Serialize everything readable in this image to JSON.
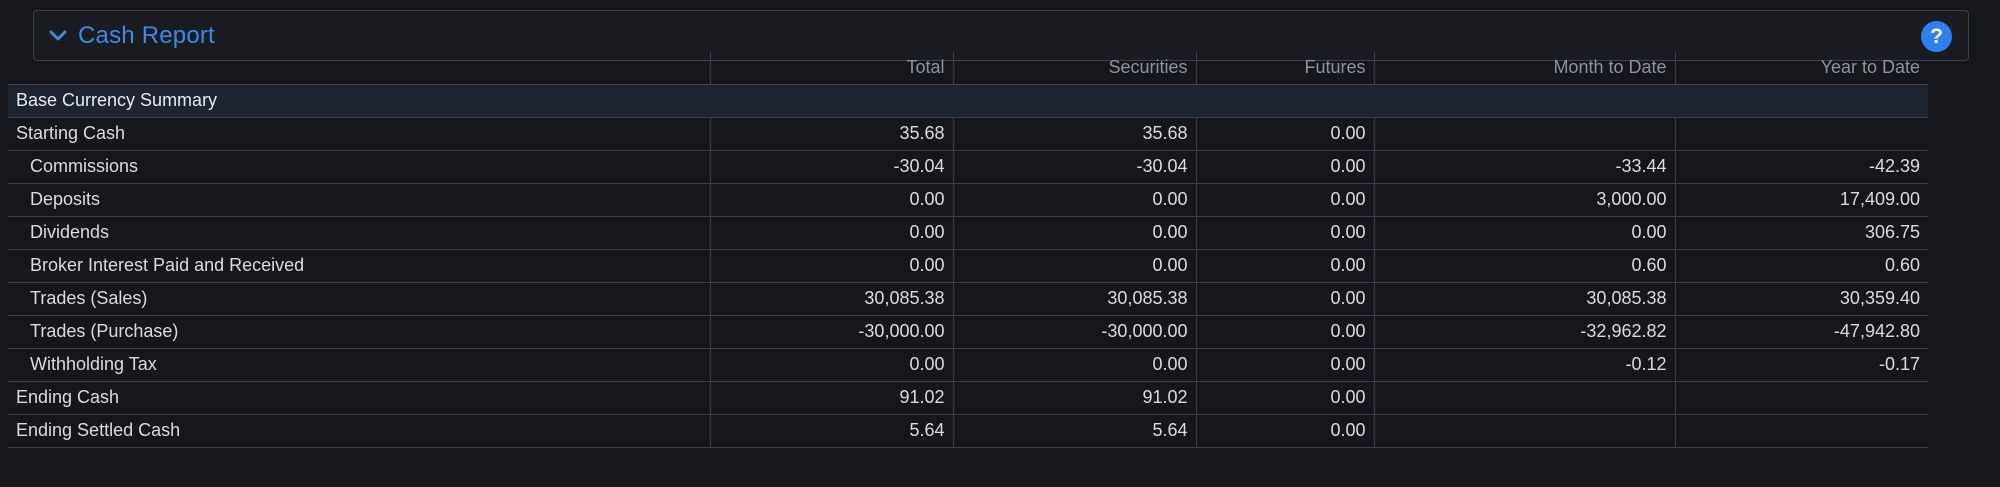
{
  "panel": {
    "title": "Cash Report",
    "help_label": "?"
  },
  "table": {
    "columns": [
      "",
      "Total",
      "Securities",
      "Futures",
      "Month to Date",
      "Year to Date"
    ],
    "section_label": "Base Currency Summary",
    "rows": [
      {
        "label": "Starting Cash",
        "indent": false,
        "total": "35.68",
        "securities": "35.68",
        "futures": "0.00",
        "mtd": "",
        "ytd": ""
      },
      {
        "label": "Commissions",
        "indent": true,
        "total": "-30.04",
        "securities": "-30.04",
        "futures": "0.00",
        "mtd": "-33.44",
        "ytd": "-42.39"
      },
      {
        "label": "Deposits",
        "indent": true,
        "total": "0.00",
        "securities": "0.00",
        "futures": "0.00",
        "mtd": "3,000.00",
        "ytd": "17,409.00"
      },
      {
        "label": "Dividends",
        "indent": true,
        "total": "0.00",
        "securities": "0.00",
        "futures": "0.00",
        "mtd": "0.00",
        "ytd": "306.75"
      },
      {
        "label": "Broker Interest Paid and Received",
        "indent": true,
        "total": "0.00",
        "securities": "0.00",
        "futures": "0.00",
        "mtd": "0.60",
        "ytd": "0.60"
      },
      {
        "label": "Trades (Sales)",
        "indent": true,
        "total": "30,085.38",
        "securities": "30,085.38",
        "futures": "0.00",
        "mtd": "30,085.38",
        "ytd": "30,359.40"
      },
      {
        "label": "Trades (Purchase)",
        "indent": true,
        "total": "-30,000.00",
        "securities": "-30,000.00",
        "futures": "0.00",
        "mtd": "-32,962.82",
        "ytd": "-47,942.80"
      },
      {
        "label": "Withholding Tax",
        "indent": true,
        "total": "0.00",
        "securities": "0.00",
        "futures": "0.00",
        "mtd": "-0.12",
        "ytd": "-0.17"
      },
      {
        "label": "Ending Cash",
        "indent": false,
        "total": "91.02",
        "securities": "91.02",
        "futures": "0.00",
        "mtd": "",
        "ytd": ""
      },
      {
        "label": "Ending Settled Cash",
        "indent": false,
        "total": "5.64",
        "securities": "5.64",
        "futures": "0.00",
        "mtd": "",
        "ytd": ""
      }
    ]
  },
  "icons": {
    "collapse": "chevron-down-icon",
    "help": "help-icon"
  },
  "colors": {
    "background": "#16171d",
    "accent": "#3b8ae6",
    "help_button": "#2f80ed",
    "section_row": "#1f2530",
    "grid_line": "#3e414a"
  }
}
